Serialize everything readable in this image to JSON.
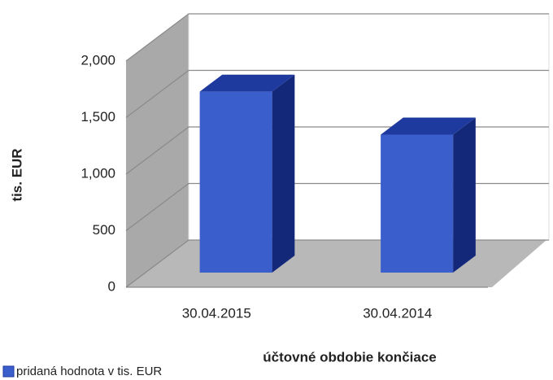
{
  "chart_data": {
    "type": "bar3d",
    "categories": [
      "30.04.2015",
      "30.04.2014"
    ],
    "series": [
      {
        "name": "pridaná hodnota v tis. EUR",
        "color": "#3a5fcd",
        "values": [
          1600,
          1220
        ]
      }
    ],
    "ylim": [
      0,
      2000
    ],
    "yticks": [
      0,
      500,
      {
        "value": 1000,
        "label": "1,000"
      },
      {
        "value": 1500,
        "label": "1,500"
      },
      {
        "value": 2000,
        "label": "2,000"
      }
    ],
    "ylabel": "tis. EUR",
    "xlabel": "účtovné obdobie končiace",
    "grid": true,
    "legend": "bottom-left"
  }
}
